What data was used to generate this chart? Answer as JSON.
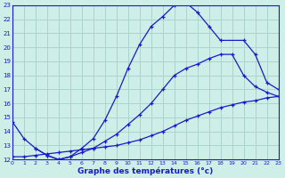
{
  "xlabel": "Graphe des températures (°c)",
  "bg_color": "#ceeee8",
  "grid_color": "#aad4ce",
  "line_color": "#1a1acc",
  "xlim": [
    0,
    23
  ],
  "ylim": [
    12,
    23
  ],
  "xticks": [
    0,
    1,
    2,
    3,
    4,
    5,
    6,
    7,
    8,
    9,
    10,
    11,
    12,
    13,
    14,
    15,
    16,
    17,
    18,
    19,
    20,
    21,
    22,
    23
  ],
  "yticks": [
    12,
    13,
    14,
    15,
    16,
    17,
    18,
    19,
    20,
    21,
    22,
    23
  ],
  "line_straight_x": [
    0,
    1,
    2,
    3,
    4,
    5,
    6,
    7,
    8,
    9,
    10,
    11,
    12,
    13,
    14,
    15,
    16,
    17,
    18,
    19,
    20,
    21,
    22,
    23
  ],
  "line_straight_y": [
    12.2,
    12.2,
    12.3,
    12.4,
    12.5,
    12.6,
    12.7,
    12.8,
    12.9,
    13.0,
    13.2,
    13.4,
    13.7,
    14.0,
    14.4,
    14.8,
    15.1,
    15.4,
    15.7,
    15.9,
    16.1,
    16.2,
    16.4,
    16.5
  ],
  "line_mid_x": [
    0,
    1,
    2,
    3,
    4,
    5,
    6,
    7,
    8,
    9,
    10,
    11,
    12,
    13,
    14,
    15,
    16,
    17,
    18,
    19,
    20,
    21,
    22,
    23
  ],
  "line_mid_y": [
    14.7,
    13.5,
    12.8,
    12.3,
    12.0,
    12.2,
    12.5,
    12.8,
    13.3,
    13.8,
    14.5,
    15.2,
    16.0,
    17.0,
    18.0,
    18.5,
    18.8,
    19.2,
    19.5,
    19.5,
    18.0,
    17.2,
    16.8,
    16.5
  ],
  "line_peak_x": [
    2,
    3,
    4,
    5,
    6,
    7,
    8,
    9,
    10,
    11,
    12,
    13,
    14,
    15,
    16,
    17,
    18,
    20,
    21,
    22,
    23
  ],
  "line_peak_y": [
    12.8,
    12.3,
    12.0,
    12.2,
    12.8,
    13.5,
    14.8,
    16.5,
    18.5,
    20.2,
    21.5,
    22.2,
    23.0,
    23.2,
    22.5,
    21.5,
    20.5,
    20.5,
    19.5,
    17.5,
    17.0
  ]
}
